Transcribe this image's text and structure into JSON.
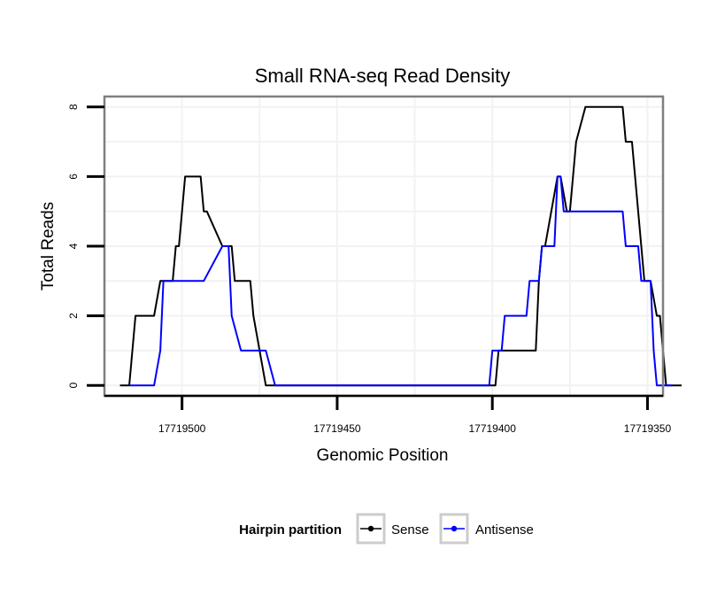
{
  "chart_data": {
    "type": "line",
    "title": "Small RNA-seq Read Density",
    "xlabel": "Genomic Position",
    "ylabel": "Total Reads",
    "xlim": [
      17719525,
      17719345
    ],
    "x_reversed": true,
    "ylim": [
      -0.3,
      8.3
    ],
    "x_ticks": [
      17719500,
      17719450,
      17719400,
      17719350
    ],
    "x_tick_labels": [
      "17719500",
      "17719450",
      "17719400",
      "17719350"
    ],
    "y_ticks": [
      0,
      2,
      4,
      6,
      8
    ],
    "y_tick_labels": [
      "0",
      "2",
      "4",
      "6",
      "8"
    ],
    "grid": true,
    "legend": {
      "title": "Hairpin partition",
      "position": "bottom",
      "entries": [
        "Sense",
        "Antisense"
      ]
    },
    "series": [
      {
        "name": "Sense",
        "color": "#000000",
        "x": [
          17719520,
          17719517,
          17719515,
          17719509,
          17719507,
          17719503,
          17719502,
          17719501,
          17719499,
          17719494,
          17719493,
          17719492,
          17719487,
          17719486,
          17719484,
          17719483,
          17719478,
          17719477,
          17719473,
          17719470,
          17719399,
          17719398,
          17719395,
          17719386,
          17719385,
          17719384,
          17719383,
          17719379,
          17719378,
          17719376,
          17719375,
          17719374,
          17719373,
          17719370,
          17719369,
          17719368,
          17719366,
          17719365,
          17719363,
          17719358,
          17719357,
          17719355,
          17719354,
          17719352,
          17719351,
          17719349,
          17719347,
          17719346,
          17719344,
          17719343,
          17719342,
          17719341,
          17719340,
          17719339
        ],
        "y": [
          0,
          0,
          2,
          2,
          3,
          3,
          4,
          4,
          6,
          6,
          5,
          5,
          4,
          4,
          4,
          3,
          3,
          2,
          0,
          0,
          0,
          1,
          1,
          1,
          3,
          4,
          4,
          6,
          6,
          5,
          5,
          6,
          7,
          8,
          8,
          8,
          8,
          8,
          8,
          8,
          7,
          7,
          6,
          4,
          3,
          3,
          2,
          2,
          0,
          0,
          0,
          0,
          0,
          0
        ]
      },
      {
        "name": "Antisense",
        "color": "#0000ff",
        "x": [
          17719517,
          17719509,
          17719507,
          17719506,
          17719499,
          17719494,
          17719493,
          17719487,
          17719486,
          17719485,
          17719484,
          17719481,
          17719480,
          17719473,
          17719470,
          17719401,
          17719400,
          17719397,
          17719396,
          17719389,
          17719388,
          17719385,
          17719384,
          17719380,
          17719379,
          17719378,
          17719377,
          17719374,
          17719373,
          17719368,
          17719364,
          17719358,
          17719357,
          17719353,
          17719352,
          17719349,
          17719348,
          17719347,
          17719346,
          17719342
        ],
        "y": [
          0,
          0,
          1,
          3,
          3,
          3,
          3,
          4,
          4,
          4,
          2,
          1,
          1,
          1,
          0,
          0,
          1,
          1,
          2,
          2,
          3,
          3,
          4,
          4,
          6,
          6,
          5,
          5,
          5,
          5,
          5,
          5,
          4,
          4,
          3,
          3,
          1,
          0,
          0,
          0
        ]
      }
    ]
  }
}
